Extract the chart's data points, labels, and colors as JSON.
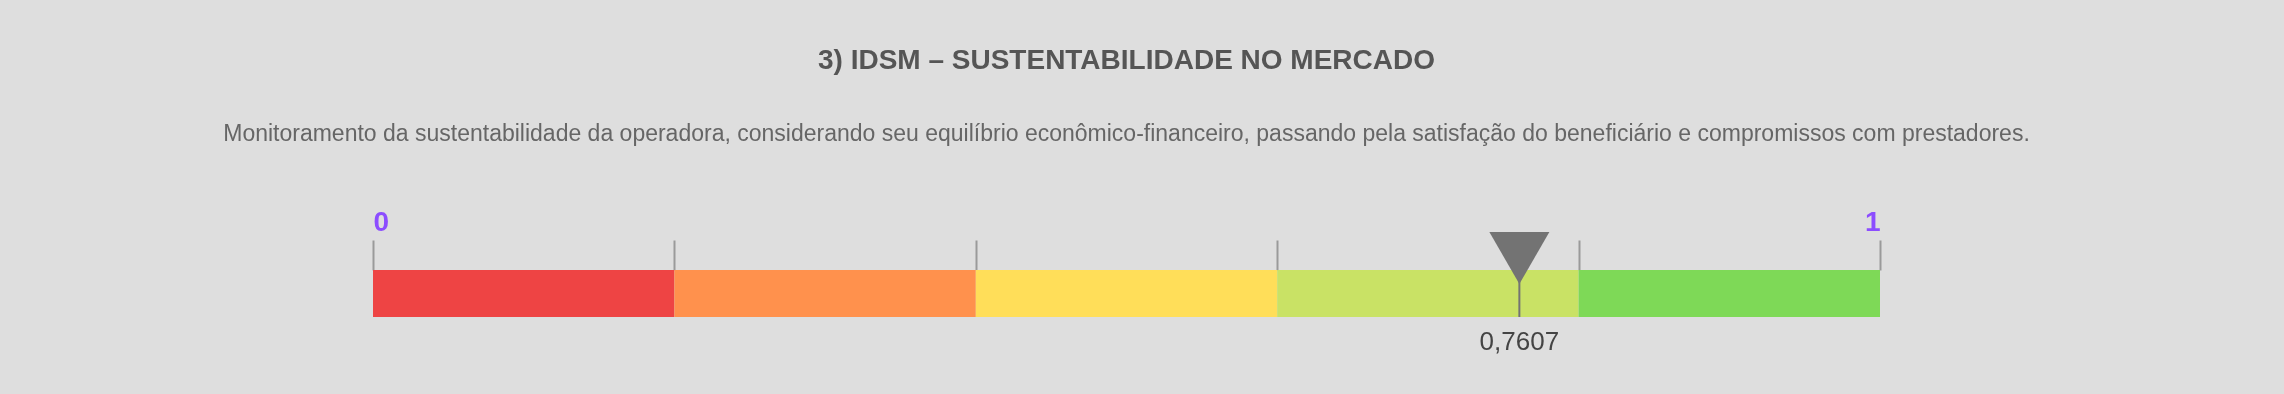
{
  "chart_data": {
    "type": "bar",
    "orientation": "horizontal",
    "stacked": true,
    "title": "3) IDSM – SUSTENTABILIDADE NO MERCADO",
    "subtitle": "Monitoramento da sustentabilidade da operadora, considerando seu equilíbrio econômico-financeiro, passando pela satisfação do beneficiário e compromissos com prestadores.",
    "categories": [
      null
    ],
    "series": [
      {
        "color": "#ee4444",
        "values": [
          0.2
        ]
      },
      {
        "color": "#ff914d",
        "values": [
          0.2
        ]
      },
      {
        "color": "#ffde59",
        "values": [
          0.2
        ]
      },
      {
        "color": "#c9e265",
        "values": [
          0.2
        ]
      },
      {
        "color": "#7ed957",
        "values": [
          0.2
        ]
      }
    ],
    "xlim": [
      0,
      1
    ],
    "xticks": [
      0,
      1
    ],
    "ref_lines": [
      {
        "axis": "x",
        "value": 0.7607,
        "label": "0,7607",
        "color": "#737373"
      }
    ],
    "legend": false
  }
}
